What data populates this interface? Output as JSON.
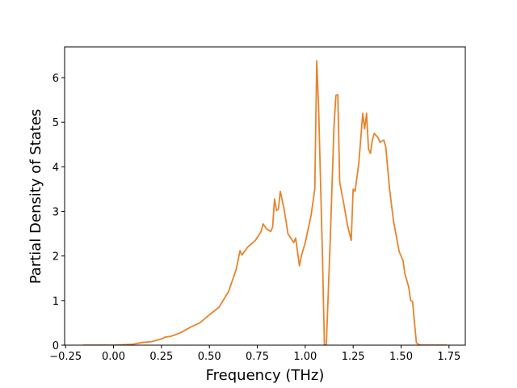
{
  "chart_data": {
    "type": "line",
    "x_label": "Frequency (THz)",
    "y_label": "Partial Density of States",
    "x": [
      -0.16,
      0.0,
      0.1,
      0.15,
      0.2,
      0.25,
      0.27,
      0.3,
      0.35,
      0.4,
      0.45,
      0.5,
      0.55,
      0.6,
      0.62,
      0.64,
      0.66,
      0.67,
      0.7,
      0.74,
      0.77,
      0.78,
      0.8,
      0.82,
      0.83,
      0.84,
      0.85,
      0.86,
      0.87,
      0.89,
      0.91,
      0.94,
      0.95,
      0.97,
      0.98,
      1.0,
      1.03,
      1.05,
      1.06,
      1.07,
      1.09,
      1.1,
      1.11,
      1.13,
      1.15,
      1.16,
      1.17,
      1.18,
      1.2,
      1.22,
      1.24,
      1.25,
      1.26,
      1.28,
      1.3,
      1.31,
      1.32,
      1.33,
      1.34,
      1.35,
      1.36,
      1.38,
      1.39,
      1.41,
      1.42,
      1.44,
      1.46,
      1.49,
      1.51,
      1.52,
      1.54,
      1.55,
      1.56,
      1.57,
      1.58,
      1.6,
      1.74
    ],
    "series": [
      {
        "color": "#e8832b",
        "values": [
          0,
          0,
          0.02,
          0.06,
          0.08,
          0.14,
          0.18,
          0.2,
          0.28,
          0.4,
          0.5,
          0.68,
          0.85,
          1.2,
          1.45,
          1.7,
          2.12,
          2.02,
          2.2,
          2.35,
          2.55,
          2.72,
          2.6,
          2.55,
          2.65,
          3.28,
          3.02,
          3.05,
          3.45,
          3.05,
          2.5,
          2.3,
          2.4,
          1.78,
          2.0,
          2.3,
          2.9,
          3.5,
          6.38,
          5.3,
          2.0,
          0,
          0,
          2.3,
          4.9,
          5.6,
          5.62,
          3.65,
          3.2,
          2.7,
          2.35,
          3.5,
          3.45,
          4.1,
          5.2,
          4.85,
          5.2,
          4.4,
          4.3,
          4.6,
          4.75,
          4.65,
          4.55,
          4.6,
          4.45,
          3.5,
          2.8,
          2.1,
          1.9,
          1.6,
          1.3,
          1.0,
          0.98,
          0.5,
          0.05,
          0,
          0
        ]
      }
    ],
    "xlim": [
      -0.255,
      1.835
    ],
    "ylim": [
      0,
      6.69
    ],
    "xticks": [
      {
        "value": -0.25,
        "label": "−0.25"
      },
      {
        "value": 0,
        "label": "0.00"
      },
      {
        "value": 0.25,
        "label": "0.25"
      },
      {
        "value": 0.5,
        "label": "0.50"
      },
      {
        "value": 0.75,
        "label": "0.75"
      },
      {
        "value": 1.0,
        "label": "1.00"
      },
      {
        "value": 1.25,
        "label": "1.25"
      },
      {
        "value": 1.5,
        "label": "1.50"
      },
      {
        "value": 1.75,
        "label": "1.75"
      }
    ],
    "yticks": [
      0,
      1,
      2,
      3,
      4,
      5,
      6
    ]
  }
}
